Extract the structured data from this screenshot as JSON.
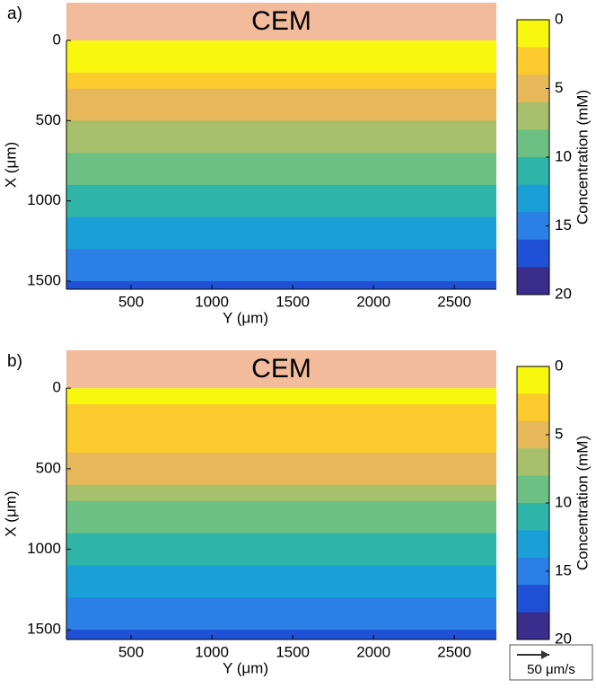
{
  "chart_data": [
    {
      "type": "heatmap",
      "panel": "a)",
      "annotation": "CEM",
      "xlabel": "Y (μm)",
      "ylabel": "X (μm)",
      "colorbar_label": "Concentration (mM)",
      "xlim": [
        100,
        2760
      ],
      "ylim": [
        -235,
        1550
      ],
      "xticks": [
        500,
        1000,
        1500,
        2000,
        2500
      ],
      "yticks": [
        0,
        500,
        1000,
        1500
      ],
      "clim": [
        0,
        20
      ],
      "cticks": [
        0,
        5,
        10,
        15,
        20
      ],
      "colormap": [
        "#f8f80f",
        "#fbca2c",
        "#e6b85a",
        "#a8bf6c",
        "#6cc083",
        "#2fb5a8",
        "#1aa0d6",
        "#2a80e4",
        "#2050d6",
        "#3a2d8c"
      ],
      "membrane_color": "#f2bb9c",
      "y": [
        0,
        100,
        200,
        300,
        400,
        500,
        600,
        700,
        800,
        900,
        1000,
        1100,
        1200,
        1300,
        1400,
        1500
      ],
      "values": [
        0.5,
        1.5,
        3,
        4,
        5,
        6,
        7,
        8,
        9,
        10,
        11,
        12,
        13,
        14,
        15,
        16
      ]
    },
    {
      "type": "heatmap",
      "panel": "b)",
      "annotation": "CEM",
      "xlabel": "Y (μm)",
      "ylabel": "X (μm)",
      "colorbar_label": "Concentration (mM)",
      "xlim": [
        100,
        2760
      ],
      "ylim": [
        -235,
        1560
      ],
      "xticks": [
        500,
        1000,
        1500,
        2000,
        2500
      ],
      "yticks": [
        0,
        500,
        1000,
        1500
      ],
      "clim": [
        0,
        20
      ],
      "cticks": [
        0,
        5,
        10,
        15,
        20
      ],
      "colormap": [
        "#f8f80f",
        "#fbca2c",
        "#e6b85a",
        "#a8bf6c",
        "#6cc083",
        "#2fb5a8",
        "#1aa0d6",
        "#2a80e4",
        "#2050d6",
        "#3a2d8c"
      ],
      "membrane_color": "#f2bb9c",
      "y": [
        0,
        100,
        200,
        300,
        400,
        500,
        600,
        700,
        800,
        900,
        1000,
        1100,
        1200,
        1300,
        1400,
        1500
      ],
      "values": [
        1,
        2.5,
        3,
        3.5,
        4.5,
        5.5,
        7,
        8,
        9,
        10,
        11,
        12,
        13,
        14,
        15,
        16
      ],
      "scale_label": "50 μm/s"
    }
  ]
}
